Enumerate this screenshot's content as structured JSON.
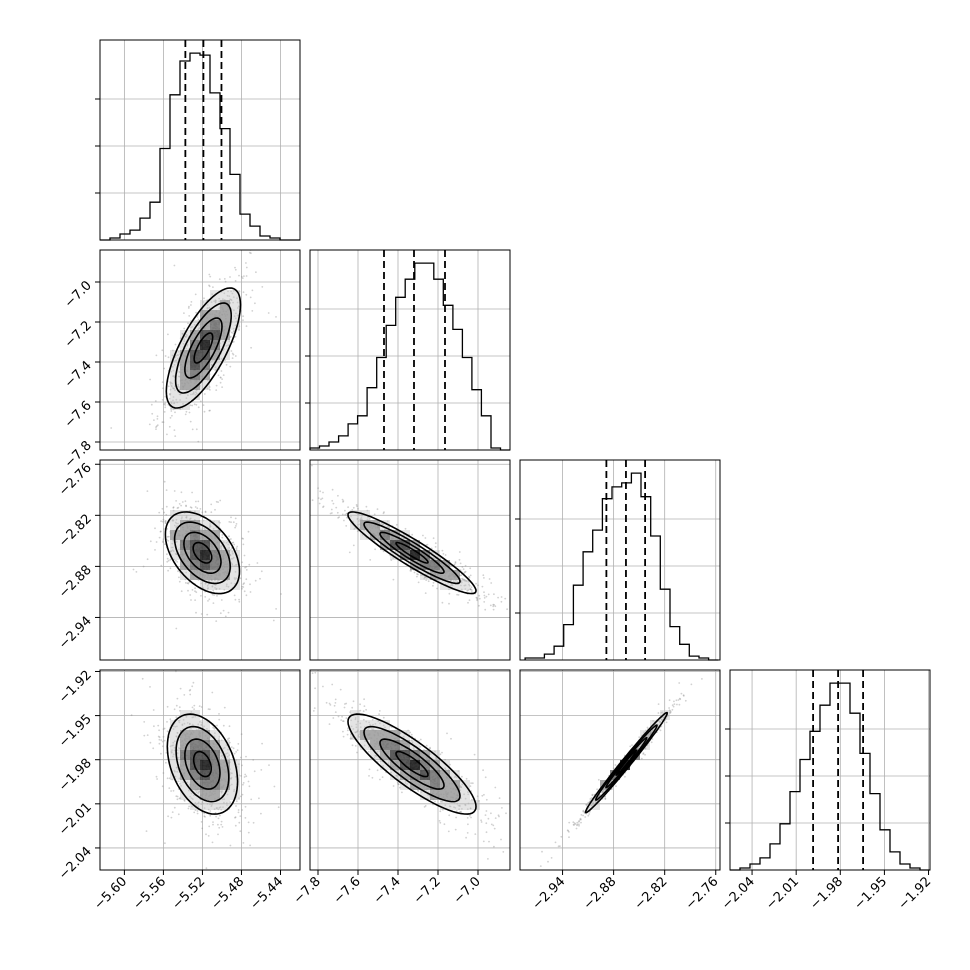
{
  "chart_data": {
    "type": "corner",
    "parameters": [
      {
        "index": 0,
        "median": -5.519,
        "q16": -5.5375,
        "q84": -5.5005,
        "hist_range": [
          -5.625,
          -5.42
        ],
        "axis_range": [
          -5.625,
          -5.42
        ],
        "ticks": [
          -5.6,
          -5.56,
          -5.52,
          -5.48,
          -5.44
        ],
        "tick_labels": [
          "−5.60",
          "−5.56",
          "−5.52",
          "−5.48",
          "−5.44"
        ],
        "counts": [
          0,
          1,
          3,
          5,
          11,
          19,
          46,
          73,
          90,
          94,
          93,
          74,
          56,
          33,
          13,
          7,
          2,
          1,
          0,
          0
        ]
      },
      {
        "index": 1,
        "median": -7.32,
        "q16": -7.47,
        "q84": -7.165,
        "hist_range": [
          -7.84,
          -6.84
        ],
        "axis_range": [
          -7.84,
          -6.84
        ],
        "ticks": [
          -7.8,
          -7.6,
          -7.4,
          -7.2,
          -7.0
        ],
        "tick_labels": [
          "−7.8",
          "−7.6",
          "−7.4",
          "−7.2",
          "−7.0"
        ],
        "counts": [
          1,
          2,
          4,
          7,
          13,
          17,
          31,
          46,
          62,
          76,
          85,
          93,
          93,
          85,
          72,
          60,
          46,
          30,
          17,
          1,
          0
        ]
      },
      {
        "index": 2,
        "median": -2.8655,
        "q16": -2.8885,
        "q84": -2.843,
        "hist_range": [
          -2.984,
          -2.757
        ],
        "axis_range": [
          -2.99,
          -2.755
        ],
        "ticks": [
          -2.94,
          -2.88,
          -2.82,
          -2.76
        ],
        "tick_labels": [
          "−2.94",
          "−2.88",
          "−2.82",
          "−2.76"
        ],
        "counts": [
          1,
          1,
          3,
          7,
          18,
          38,
          55,
          66,
          82,
          88,
          90,
          95,
          83,
          63,
          36,
          17,
          8,
          2,
          1,
          0
        ]
      },
      {
        "index": 3,
        "median": -1.9815,
        "q16": -1.9985,
        "q84": -1.9645,
        "hist_range": [
          -2.055,
          -1.919
        ],
        "axis_range": [
          -2.055,
          -1.919
        ],
        "ticks": [
          -2.04,
          -2.01,
          -1.98,
          -1.95,
          -1.92
        ],
        "tick_labels": [
          "−2.04",
          "−2.01",
          "−1.98",
          "−1.95",
          "−1.92"
        ],
        "counts": [
          0,
          1,
          3,
          6,
          13,
          23,
          39,
          55,
          69,
          82,
          93,
          93,
          78,
          58,
          38,
          20,
          9,
          3,
          1,
          0
        ]
      }
    ],
    "pairs": [
      {
        "x": 0,
        "y": 1,
        "center": [
          -5.519,
          -7.33
        ],
        "sd": [
          0.019,
          0.15
        ],
        "corr": 0.72
      },
      {
        "x": 0,
        "y": 2,
        "center": [
          -5.52,
          -2.864
        ],
        "sd": [
          0.019,
          0.024
        ],
        "corr": -0.45
      },
      {
        "x": 1,
        "y": 2,
        "center": [
          -7.33,
          -2.864
        ],
        "sd": [
          0.16,
          0.024
        ],
        "corr": -0.93
      },
      {
        "x": 0,
        "y": 3,
        "center": [
          -5.52,
          -1.983
        ],
        "sd": [
          0.018,
          0.017
        ],
        "corr": -0.35
      },
      {
        "x": 1,
        "y": 3,
        "center": [
          -7.33,
          -1.983
        ],
        "sd": [
          0.16,
          0.017
        ],
        "corr": -0.85
      },
      {
        "x": 2,
        "y": 3,
        "center": [
          -2.865,
          -1.982
        ],
        "sd": [
          0.024,
          0.017
        ],
        "corr": 0.99
      }
    ],
    "contour_levels_sigma": [
      0.5,
      1.0,
      1.5,
      2.0
    ],
    "quantile_lines": "dashed",
    "grid": true
  }
}
